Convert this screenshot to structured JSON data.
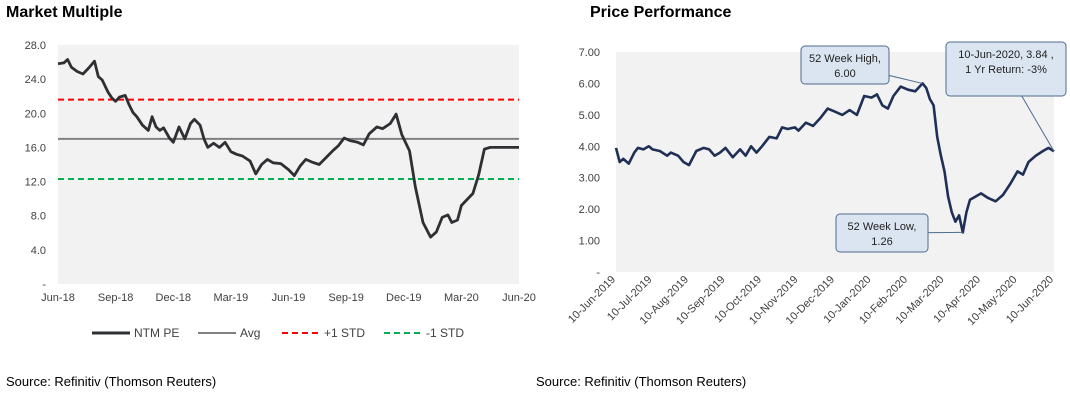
{
  "left": {
    "title": "Market Multiple",
    "source": "Source: Refinitiv (Thomson Reuters)"
  },
  "right": {
    "title": "Price Performance",
    "source": "Source: Refinitiv (Thomson Reuters)"
  },
  "colors": {
    "ntm_pe": "#2f3033",
    "avg": "#808080",
    "plus_std": "#ff0000",
    "minus_std": "#00b050",
    "price": "#1f2f56",
    "plot_bg": "#f2f2f2",
    "callout_fill": "#dbe5f1",
    "callout_stroke": "#4f6b8f"
  },
  "chart_data": [
    {
      "type": "line",
      "ylim": [
        0,
        28
      ],
      "yticks": [
        "-",
        "4.0",
        "8.0",
        "12.0",
        "16.0",
        "20.0",
        "24.0",
        "28.0"
      ],
      "ytick_values": [
        0,
        4,
        8,
        12,
        16,
        20,
        24,
        28
      ],
      "xticks": [
        "Jun-18",
        "Sep-18",
        "Dec-18",
        "Mar-19",
        "Jun-19",
        "Sep-19",
        "Dec-19",
        "Mar-20",
        "Jun-20"
      ],
      "xtick_months": [
        0,
        3,
        6,
        9,
        12,
        15,
        18,
        21,
        24
      ],
      "xlim_months": [
        0,
        24
      ],
      "legend": [
        "NTM PE",
        "Avg",
        "+1 STD",
        "-1 STD"
      ],
      "legend_position": "bottom",
      "series": [
        {
          "name": "NTM PE",
          "x_months": [
            0,
            0.3,
            0.5,
            0.7,
            1.0,
            1.3,
            1.6,
            1.9,
            2.1,
            2.3,
            2.6,
            2.8,
            3.0,
            3.2,
            3.5,
            3.7,
            3.9,
            4.1,
            4.4,
            4.7,
            4.9,
            5.1,
            5.3,
            5.5,
            5.8,
            6.0,
            6.3,
            6.6,
            6.9,
            7.1,
            7.4,
            7.6,
            7.8,
            8.1,
            8.4,
            8.7,
            9.0,
            9.3,
            9.6,
            10.0,
            10.3,
            10.6,
            10.9,
            11.2,
            11.6,
            12.0,
            12.3,
            12.6,
            12.9,
            13.2,
            13.6,
            14.0,
            14.3,
            14.6,
            14.9,
            15.2,
            15.6,
            15.9,
            16.2,
            16.6,
            16.9,
            17.3,
            17.6,
            17.9,
            18.3,
            18.6,
            19.0,
            19.4,
            19.7,
            20.0,
            20.3,
            20.5,
            20.8,
            21.0,
            21.3,
            21.6,
            21.9,
            22.2,
            22.5,
            22.8,
            23.1,
            23.4,
            23.6,
            23.8,
            24.0
          ],
          "values": [
            25.8,
            25.9,
            26.3,
            25.4,
            24.9,
            24.6,
            25.3,
            26.1,
            24.3,
            23.9,
            22.5,
            21.8,
            21.4,
            21.9,
            22.1,
            21.0,
            20.1,
            19.6,
            18.6,
            18.0,
            19.6,
            18.4,
            18.0,
            18.3,
            17.1,
            16.6,
            18.4,
            17.0,
            18.8,
            19.3,
            18.6,
            17.0,
            16.0,
            16.5,
            16.0,
            16.6,
            15.5,
            15.2,
            15.0,
            14.4,
            12.9,
            14.0,
            14.6,
            14.2,
            14.1,
            13.4,
            12.7,
            13.8,
            14.6,
            14.3,
            14.0,
            14.9,
            15.6,
            16.2,
            17.1,
            16.8,
            16.6,
            16.3,
            17.6,
            18.4,
            18.2,
            18.8,
            19.9,
            17.5,
            15.6,
            11.4,
            7.2,
            5.5,
            6.1,
            7.8,
            8.1,
            7.2,
            7.5,
            9.2,
            9.9,
            10.6,
            12.8,
            15.8,
            16.0,
            16.0,
            16.0,
            16.0,
            16.0,
            16.0,
            16.0
          ]
        },
        {
          "name": "Avg",
          "constant": 17.0
        },
        {
          "name": "+1 STD",
          "constant": 21.6
        },
        {
          "name": "-1 STD",
          "constant": 12.3
        }
      ]
    },
    {
      "type": "line",
      "ylim": [
        0,
        7
      ],
      "yticks": [
        "-",
        "1.00",
        "2.00",
        "3.00",
        "4.00",
        "5.00",
        "6.00",
        "7.00"
      ],
      "ytick_values": [
        0,
        1,
        2,
        3,
        4,
        5,
        6,
        7
      ],
      "xticks": [
        "10-Jun-2019",
        "10-Jul-2019",
        "10-Aug-2019",
        "10-Sep-2019",
        "10-Oct-2019",
        "10-Nov-2019",
        "10-Dec-2019",
        "10-Jan-2020",
        "10-Feb-2020",
        "10-Mar-2020",
        "10-Apr-2020",
        "10-May-2020",
        "10-Jun-2020"
      ],
      "xtick_months": [
        0,
        1,
        2,
        3,
        4,
        5,
        6,
        7,
        8,
        9,
        10,
        11,
        12
      ],
      "xlim_months": [
        0,
        12
      ],
      "series": [
        {
          "name": "Price",
          "x_months": [
            0,
            0.1,
            0.2,
            0.35,
            0.5,
            0.6,
            0.75,
            0.9,
            1.0,
            1.2,
            1.4,
            1.5,
            1.7,
            1.85,
            2.0,
            2.2,
            2.4,
            2.55,
            2.7,
            2.85,
            3.0,
            3.2,
            3.4,
            3.55,
            3.7,
            3.85,
            4.0,
            4.2,
            4.4,
            4.55,
            4.7,
            4.9,
            5.0,
            5.2,
            5.4,
            5.6,
            5.8,
            6.0,
            6.2,
            6.4,
            6.6,
            6.8,
            7.0,
            7.15,
            7.3,
            7.45,
            7.6,
            7.8,
            8.0,
            8.2,
            8.4,
            8.5,
            8.6,
            8.7,
            8.8,
            8.9,
            9.0,
            9.1,
            9.2,
            9.3,
            9.4,
            9.5,
            9.6,
            9.7,
            9.85,
            10.0,
            10.2,
            10.4,
            10.6,
            10.8,
            11.0,
            11.15,
            11.3,
            11.5,
            11.7,
            11.85,
            12.0
          ],
          "values": [
            3.95,
            3.5,
            3.6,
            3.45,
            3.8,
            3.95,
            3.9,
            4.0,
            3.9,
            3.85,
            3.7,
            3.8,
            3.7,
            3.5,
            3.4,
            3.85,
            3.95,
            3.9,
            3.7,
            3.8,
            3.95,
            3.65,
            3.9,
            3.7,
            4.0,
            3.8,
            4.0,
            4.3,
            4.25,
            4.6,
            4.55,
            4.6,
            4.5,
            4.75,
            4.65,
            4.9,
            5.2,
            5.1,
            5.0,
            5.15,
            5.0,
            5.6,
            5.55,
            5.65,
            5.3,
            5.2,
            5.6,
            5.9,
            5.8,
            5.75,
            6.0,
            5.85,
            5.5,
            5.3,
            4.3,
            3.7,
            3.2,
            2.4,
            1.9,
            1.6,
            1.8,
            1.26,
            1.9,
            2.3,
            2.4,
            2.5,
            2.35,
            2.25,
            2.45,
            2.8,
            3.2,
            3.1,
            3.5,
            3.7,
            3.85,
            3.95,
            3.84
          ]
        }
      ],
      "annotations": [
        {
          "lines": [
            "52 Week High,",
            "6.00"
          ]
        },
        {
          "lines": [
            "52 Week Low,",
            "1.26"
          ]
        },
        {
          "lines": [
            "10-Jun-2020,  3.84 ,",
            "1 Yr Return: -3%"
          ]
        }
      ]
    }
  ]
}
